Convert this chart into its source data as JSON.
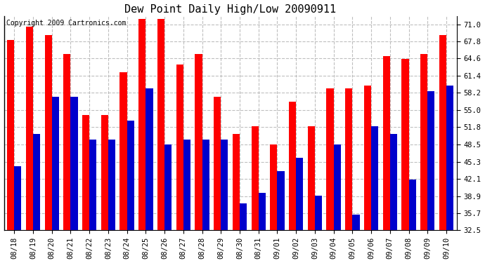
{
  "title": "Dew Point Daily High/Low 20090911",
  "copyright": "Copyright 2009 Cartronics.com",
  "dates": [
    "08/18",
    "08/19",
    "08/20",
    "08/21",
    "08/22",
    "08/23",
    "08/24",
    "08/25",
    "08/26",
    "08/27",
    "08/28",
    "08/29",
    "08/30",
    "08/31",
    "09/01",
    "09/02",
    "09/03",
    "09/04",
    "09/05",
    "09/06",
    "09/07",
    "09/08",
    "09/09",
    "09/10"
  ],
  "highs": [
    68.0,
    70.5,
    69.0,
    65.5,
    54.0,
    54.0,
    62.0,
    72.0,
    72.0,
    63.5,
    65.5,
    57.5,
    50.5,
    52.0,
    48.5,
    56.5,
    52.0,
    59.0,
    59.0,
    59.5,
    65.0,
    64.5,
    65.5,
    69.0
  ],
  "lows": [
    44.5,
    50.5,
    57.5,
    57.5,
    49.5,
    49.5,
    53.0,
    59.0,
    48.5,
    49.5,
    49.5,
    49.5,
    37.5,
    39.5,
    43.5,
    46.0,
    39.0,
    48.5,
    35.5,
    52.0,
    50.5,
    42.0,
    58.5,
    59.5
  ],
  "bar_color_high": "#ff0000",
  "bar_color_low": "#0000cc",
  "background_color": "#ffffff",
  "grid_color": "#b0b0b0",
  "ylim_min": 32.5,
  "ylim_max": 72.5,
  "yticks": [
    32.5,
    35.7,
    38.9,
    42.1,
    45.3,
    48.5,
    51.8,
    55.0,
    58.2,
    61.4,
    64.6,
    67.8,
    71.0
  ],
  "bar_width": 0.38,
  "title_fontsize": 11,
  "tick_fontsize": 7.5,
  "copyright_fontsize": 7
}
